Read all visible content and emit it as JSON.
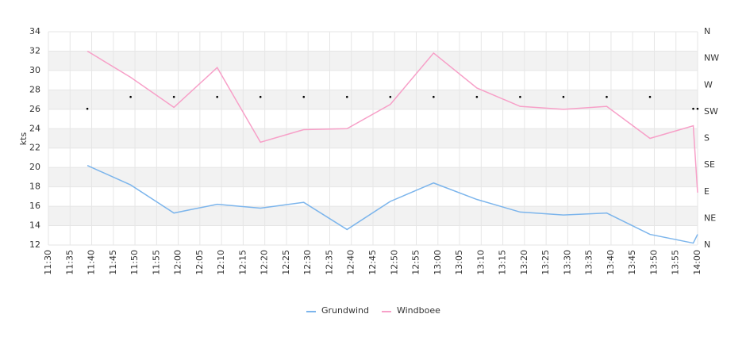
{
  "chart_data": {
    "type": "line",
    "y_label": "kts",
    "x": [
      "11:39",
      "11:49",
      "11:59",
      "12:09",
      "12:19",
      "12:29",
      "12:39",
      "12:49",
      "12:59",
      "13:09",
      "13:19",
      "13:29",
      "13:39",
      "13:49",
      "13:59",
      "14:00"
    ],
    "series": [
      {
        "name": "Grundwind",
        "color": "#7cb5ec",
        "values": [
          20.2,
          18.2,
          15.3,
          16.2,
          15.8,
          16.4,
          13.6,
          16.5,
          18.4,
          16.7,
          15.4,
          15.1,
          15.3,
          13.1,
          12.2,
          13.1
        ]
      },
      {
        "name": "Windboee",
        "color": "#f7a0c8",
        "values": [
          32.0,
          29.3,
          26.2,
          30.3,
          22.6,
          23.9,
          24.0,
          26.5,
          31.8,
          28.2,
          26.3,
          26.0,
          26.3,
          23.0,
          24.3,
          17.4
        ]
      },
      {
        "color": "#000000",
        "axis": "y2",
        "values": [
          230,
          250,
          250,
          250,
          250,
          250,
          250,
          250,
          250,
          250,
          250,
          250,
          250,
          250,
          230,
          230
        ]
      }
    ],
    "xlim": [
      "11:30",
      "14:00"
    ],
    "xticks": [
      "11:30",
      "11:35",
      "11:40",
      "11:45",
      "11:50",
      "11:55",
      "12:00",
      "12:05",
      "12:10",
      "12:15",
      "12:20",
      "12:25",
      "12:30",
      "12:35",
      "12:40",
      "12:45",
      "12:50",
      "12:55",
      "13:00",
      "13:05",
      "13:10",
      "13:15",
      "13:20",
      "13:25",
      "13:30",
      "13:35",
      "13:40",
      "13:45",
      "13:50",
      "13:55",
      "14:00"
    ],
    "ylim": [
      12,
      34
    ],
    "yticks": [
      12,
      14,
      16,
      18,
      20,
      22,
      24,
      26,
      28,
      30,
      32,
      34
    ],
    "y2lim": [
      0,
      360
    ],
    "y2ticks": [
      {
        "value": 0,
        "label": "N"
      },
      {
        "value": 45,
        "label": "NE"
      },
      {
        "value": 90,
        "label": "E"
      },
      {
        "value": 135,
        "label": "SE"
      },
      {
        "value": 180,
        "label": "S"
      },
      {
        "value": 225,
        "label": "SW"
      },
      {
        "value": 270,
        "label": "W"
      },
      {
        "value": 315,
        "label": "NW"
      },
      {
        "value": 360,
        "label": "N"
      }
    ],
    "grid": true
  }
}
